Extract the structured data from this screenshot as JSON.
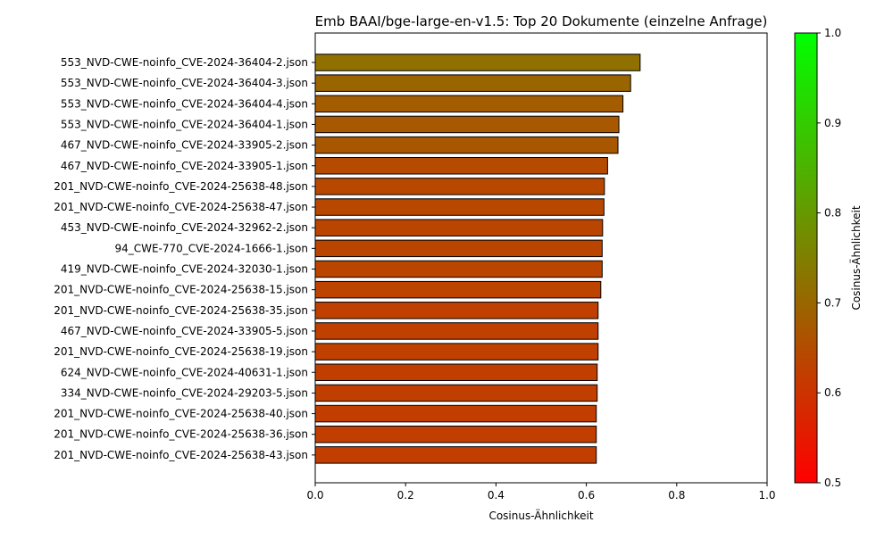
{
  "chart_data": {
    "type": "bar",
    "orientation": "horizontal",
    "title": "Emb BAAI/bge-large-en-v1.5: Top 20 Dokumente (einzelne Anfrage)",
    "xlabel": "Cosinus-Ähnlichkeit",
    "ylabel": "",
    "xlim": [
      0.0,
      1.0
    ],
    "xticks": [
      "0.0",
      "0.2",
      "0.4",
      "0.6",
      "0.8",
      "1.0"
    ],
    "grid": false,
    "categories": [
      "553_NVD-CWE-noinfo_CVE-2024-36404-2.json",
      "553_NVD-CWE-noinfo_CVE-2024-36404-3.json",
      "553_NVD-CWE-noinfo_CVE-2024-36404-4.json",
      "553_NVD-CWE-noinfo_CVE-2024-36404-1.json",
      "467_NVD-CWE-noinfo_CVE-2024-33905-2.json",
      "467_NVD-CWE-noinfo_CVE-2024-33905-1.json",
      "201_NVD-CWE-noinfo_CVE-2024-25638-48.json",
      "201_NVD-CWE-noinfo_CVE-2024-25638-47.json",
      "453_NVD-CWE-noinfo_CVE-2024-32962-2.json",
      "94_CWE-770_CVE-2024-1666-1.json",
      "419_NVD-CWE-noinfo_CVE-2024-32030-1.json",
      "201_NVD-CWE-noinfo_CVE-2024-25638-15.json",
      "201_NVD-CWE-noinfo_CVE-2024-25638-35.json",
      "467_NVD-CWE-noinfo_CVE-2024-33905-5.json",
      "201_NVD-CWE-noinfo_CVE-2024-25638-19.json",
      "624_NVD-CWE-noinfo_CVE-2024-40631-1.json",
      "334_NVD-CWE-noinfo_CVE-2024-29203-5.json",
      "201_NVD-CWE-noinfo_CVE-2024-25638-40.json",
      "201_NVD-CWE-noinfo_CVE-2024-25638-36.json",
      "201_NVD-CWE-noinfo_CVE-2024-25638-43.json"
    ],
    "values": [
      0.719,
      0.698,
      0.681,
      0.672,
      0.67,
      0.647,
      0.64,
      0.639,
      0.636,
      0.635,
      0.635,
      0.632,
      0.626,
      0.626,
      0.626,
      0.624,
      0.624,
      0.622,
      0.622,
      0.622
    ],
    "colorbar": {
      "label": "Cosinus-Ähnlichkeit",
      "range": [
        0.5,
        1.0
      ],
      "ticks": [
        "0.5",
        "0.6",
        "0.7",
        "0.8",
        "0.9",
        "1.0"
      ],
      "color_low": "#ff0000",
      "color_high": "#00ff00"
    },
    "bar_edge_color": "#000000"
  }
}
